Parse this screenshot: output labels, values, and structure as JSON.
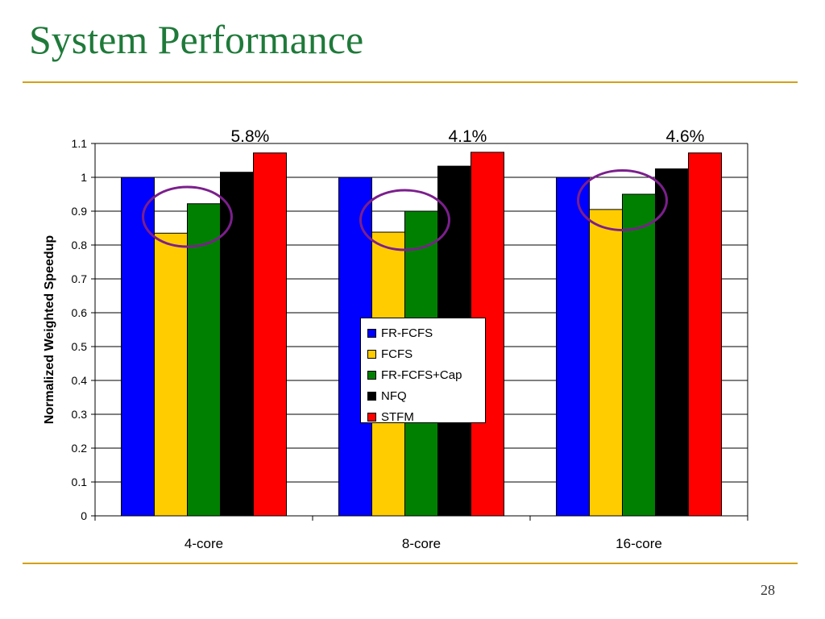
{
  "slide": {
    "title": "System Performance",
    "page_number": "28"
  },
  "colors": {
    "title": "#1f7a3a",
    "rule": "#d4a017",
    "highlight_circle": "#7b1f8c"
  },
  "chart_data": {
    "type": "bar",
    "ylabel": "Normalized Weighted Speedup",
    "xlabel": "",
    "ylim": [
      0,
      1.1
    ],
    "yticks": [
      "0",
      "0.1",
      "0.2",
      "0.3",
      "0.4",
      "0.5",
      "0.6",
      "0.7",
      "0.8",
      "0.9",
      "1",
      "1.1"
    ],
    "grid": true,
    "legend_position": "center",
    "categories": [
      "4-core",
      "8-core",
      "16-core"
    ],
    "series": [
      {
        "name": "FR-FCFS",
        "color": "#0000ff",
        "values": [
          1.0,
          1.0,
          1.0
        ]
      },
      {
        "name": "FCFS",
        "color": "#ffcc00",
        "values": [
          0.835,
          0.838,
          0.905
        ]
      },
      {
        "name": "FR-FCFS+Cap",
        "color": "#008000",
        "values": [
          0.922,
          0.9,
          0.95
        ]
      },
      {
        "name": "NFQ",
        "color": "#000000",
        "values": [
          1.015,
          1.033,
          1.025
        ]
      },
      {
        "name": "STFM",
        "color": "#ff0000",
        "values": [
          1.072,
          1.074,
          1.072
        ]
      }
    ],
    "annotations": [
      "5.8%",
      "4.1%",
      "4.6%"
    ]
  }
}
